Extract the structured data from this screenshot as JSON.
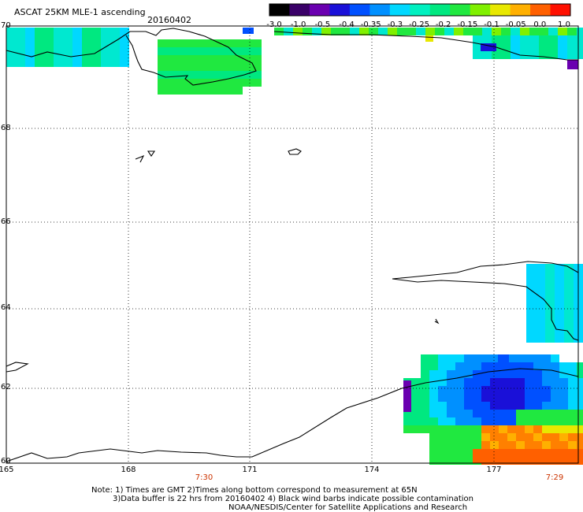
{
  "header": {
    "title": "ASCAT 25KM MLE-1 ascending",
    "date": "20160402"
  },
  "colorbar": {
    "labels": [
      "-3.0",
      "-1.0",
      "-0.5",
      "-0.4",
      "-0.35",
      "-0.3",
      "-0.25",
      "-0.2",
      "-0.15",
      "-0.1",
      "-0.05",
      "0.0",
      "1.0"
    ],
    "colors": [
      "#000000",
      "#3a0068",
      "#6a00b0",
      "#1a10d8",
      "#0050ff",
      "#0090ff",
      "#00d8ff",
      "#00f0c0",
      "#00e880",
      "#20e840",
      "#80f000",
      "#e8e800",
      "#ffb000",
      "#ff6000",
      "#ff1000"
    ]
  },
  "axes": {
    "y_labels": [
      "70",
      "68",
      "66",
      "64",
      "62",
      "60"
    ],
    "x_labels": [
      "165",
      "168",
      "171",
      "174",
      "177"
    ],
    "time_labels": [
      "7:30",
      "7:29"
    ]
  },
  "notes": [
    "Note: 1) Times are GMT 2)Times along bottom correspond to measurement at 65N",
    "3)Data buffer is 22 hrs from 20160402 4) Black wind barbs indicate possible contamination",
    "NOAA/NESDIS/Center for Satellite Applications and Research"
  ]
}
